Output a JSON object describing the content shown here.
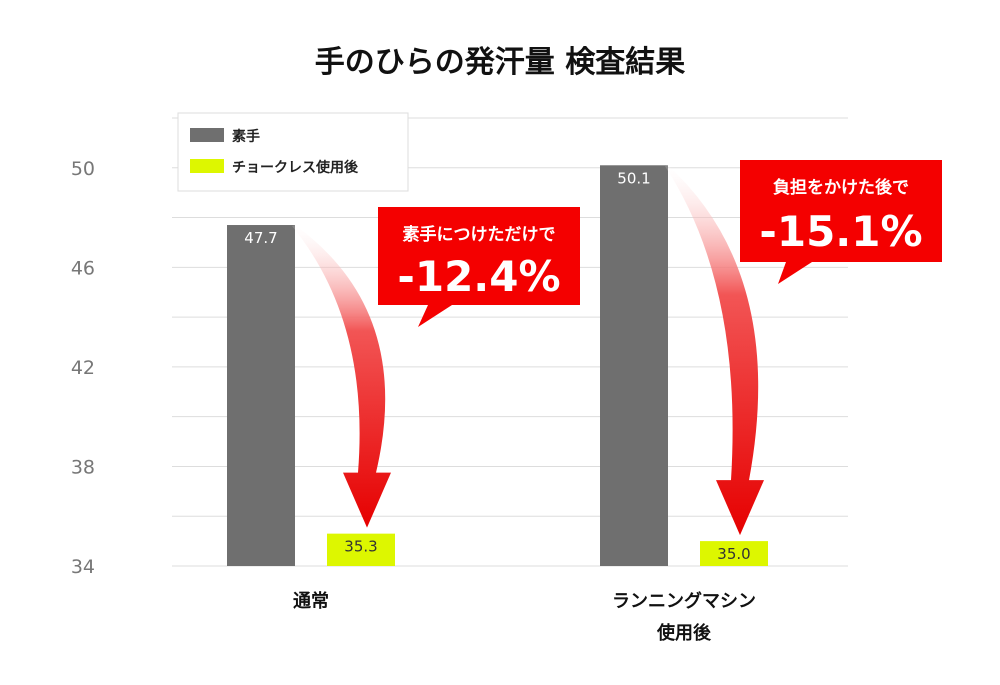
{
  "colors": {
    "bare": "#6f6f6f",
    "chalkless": "#ddf700",
    "callout": "#f40000",
    "arrow": "#ee1111",
    "grid": "#dddddd"
  },
  "chart_data": {
    "type": "bar",
    "title": "手のひらの発汗量 検査結果",
    "categories": [
      "通常",
      "ランニングマシン使用後"
    ],
    "category_lines": [
      [
        "通常"
      ],
      [
        "ランニングマシン",
        "使用後"
      ]
    ],
    "series": [
      {
        "name": "素手",
        "values": [
          47.7,
          50.1
        ],
        "labels": [
          "47.7",
          "50.1"
        ]
      },
      {
        "name": "チョークレス使用後",
        "values": [
          35.3,
          35.0
        ],
        "labels": [
          "35.3",
          "35.0"
        ]
      }
    ],
    "ylim": [
      34,
      52
    ],
    "yticks": [
      34,
      38,
      42,
      46,
      50
    ],
    "grid": true,
    "legend_position": "top-left"
  },
  "callouts": [
    {
      "subtitle": "素手につけただけで",
      "value": "-12.4%"
    },
    {
      "subtitle": "負担をかけた後で",
      "value": "-15.1%"
    }
  ]
}
